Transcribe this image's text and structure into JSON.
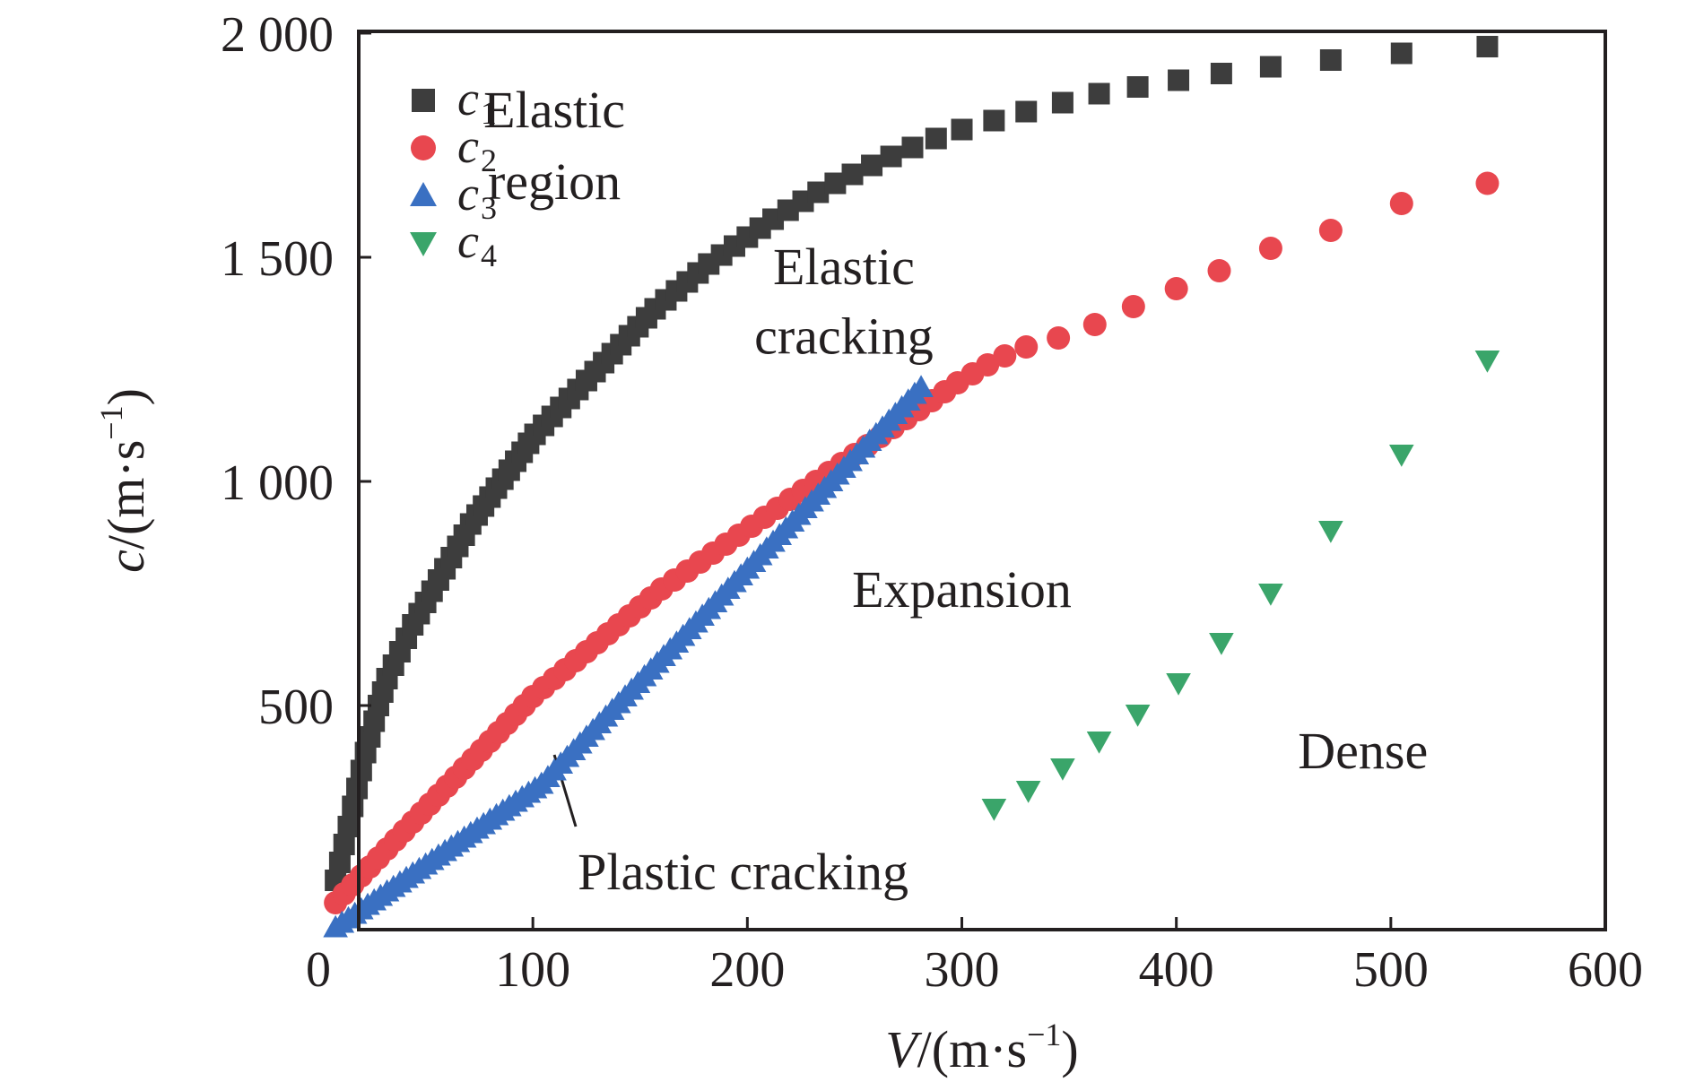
{
  "chart_data": {
    "type": "scatter",
    "xlabel": {
      "var": "V",
      "unit_open": "/(m·s",
      "unit_exp": "−1",
      "unit_close": ")"
    },
    "ylabel": {
      "var": "c",
      "unit_open": "/(m·s",
      "unit_exp": "−1",
      "unit_close": ")"
    },
    "xlim": [
      0,
      600
    ],
    "ylim": [
      0,
      2000
    ],
    "xticks": [
      {
        "value": 0,
        "label": "0"
      },
      {
        "value": 100,
        "label": "100"
      },
      {
        "value": 200,
        "label": "200"
      },
      {
        "value": 300,
        "label": "300"
      },
      {
        "value": 400,
        "label": "400"
      },
      {
        "value": 500,
        "label": "500"
      },
      {
        "value": 600,
        "label": "600"
      }
    ],
    "yticks": [
      {
        "value": 500,
        "label": "500"
      },
      {
        "value": 1000,
        "label": "1 000"
      },
      {
        "value": 1500,
        "label": "1 500"
      },
      {
        "value": 2000,
        "label": "2 000"
      }
    ],
    "grid": false,
    "legend_position": "top-left",
    "series": [
      {
        "name": "c",
        "subscript": "1",
        "marker": "square",
        "color": "#3d3d3d",
        "points": [
          [
            8,
            110
          ],
          [
            10,
            150
          ],
          [
            12,
            190
          ],
          [
            14,
            230
          ],
          [
            16,
            275
          ],
          [
            18,
            315
          ],
          [
            20,
            355
          ],
          [
            22,
            395
          ],
          [
            24,
            430
          ],
          [
            26,
            465
          ],
          [
            28,
            500
          ],
          [
            30,
            530
          ],
          [
            32,
            560
          ],
          [
            35,
            590
          ],
          [
            38,
            620
          ],
          [
            41,
            650
          ],
          [
            44,
            680
          ],
          [
            47,
            705
          ],
          [
            50,
            730
          ],
          [
            53,
            755
          ],
          [
            56,
            780
          ],
          [
            59,
            805
          ],
          [
            62,
            830
          ],
          [
            65,
            855
          ],
          [
            68,
            880
          ],
          [
            71,
            905
          ],
          [
            74,
            925
          ],
          [
            77,
            945
          ],
          [
            80,
            965
          ],
          [
            83,
            985
          ],
          [
            86,
            1005
          ],
          [
            89,
            1025
          ],
          [
            92,
            1045
          ],
          [
            95,
            1065
          ],
          [
            98,
            1085
          ],
          [
            101,
            1105
          ],
          [
            105,
            1125
          ],
          [
            109,
            1145
          ],
          [
            113,
            1165
          ],
          [
            117,
            1185
          ],
          [
            121,
            1205
          ],
          [
            125,
            1225
          ],
          [
            129,
            1245
          ],
          [
            133,
            1265
          ],
          [
            137,
            1285
          ],
          [
            141,
            1305
          ],
          [
            145,
            1325
          ],
          [
            149,
            1345
          ],
          [
            153,
            1365
          ],
          [
            157,
            1385
          ],
          [
            162,
            1405
          ],
          [
            167,
            1425
          ],
          [
            172,
            1445
          ],
          [
            177,
            1465
          ],
          [
            182,
            1485
          ],
          [
            188,
            1505
          ],
          [
            194,
            1525
          ],
          [
            200,
            1545
          ],
          [
            206,
            1565
          ],
          [
            212,
            1585
          ],
          [
            219,
            1605
          ],
          [
            226,
            1625
          ],
          [
            233,
            1645
          ],
          [
            241,
            1665
          ],
          [
            249,
            1685
          ],
          [
            258,
            1705
          ],
          [
            267,
            1725
          ],
          [
            277,
            1745
          ],
          [
            288,
            1765
          ],
          [
            300,
            1785
          ],
          [
            315,
            1805
          ],
          [
            330,
            1825
          ],
          [
            347,
            1845
          ],
          [
            364,
            1865
          ],
          [
            382,
            1880
          ],
          [
            401,
            1895
          ],
          [
            421,
            1910
          ],
          [
            444,
            1925
          ],
          [
            472,
            1940
          ],
          [
            505,
            1955
          ],
          [
            545,
            1970
          ]
        ]
      },
      {
        "name": "c",
        "subscript": "2",
        "marker": "circle",
        "color": "#e8474f",
        "points": [
          [
            8,
            60
          ],
          [
            12,
            80
          ],
          [
            16,
            100
          ],
          [
            20,
            120
          ],
          [
            24,
            140
          ],
          [
            28,
            160
          ],
          [
            32,
            180
          ],
          [
            36,
            200
          ],
          [
            40,
            220
          ],
          [
            44,
            240
          ],
          [
            48,
            260
          ],
          [
            52,
            280
          ],
          [
            56,
            300
          ],
          [
            60,
            320
          ],
          [
            64,
            340
          ],
          [
            68,
            360
          ],
          [
            72,
            380
          ],
          [
            76,
            400
          ],
          [
            80,
            420
          ],
          [
            84,
            440
          ],
          [
            88,
            460
          ],
          [
            92,
            480
          ],
          [
            96,
            500
          ],
          [
            100,
            520
          ],
          [
            105,
            540
          ],
          [
            110,
            560
          ],
          [
            115,
            580
          ],
          [
            120,
            600
          ],
          [
            125,
            620
          ],
          [
            130,
            640
          ],
          [
            135,
            660
          ],
          [
            140,
            680
          ],
          [
            145,
            700
          ],
          [
            150,
            720
          ],
          [
            155,
            740
          ],
          [
            160,
            760
          ],
          [
            166,
            780
          ],
          [
            172,
            800
          ],
          [
            178,
            820
          ],
          [
            184,
            840
          ],
          [
            190,
            860
          ],
          [
            196,
            880
          ],
          [
            202,
            900
          ],
          [
            208,
            920
          ],
          [
            214,
            940
          ],
          [
            220,
            960
          ],
          [
            226,
            980
          ],
          [
            232,
            1000
          ],
          [
            238,
            1020
          ],
          [
            244,
            1040
          ],
          [
            250,
            1060
          ],
          [
            256,
            1080
          ],
          [
            262,
            1100
          ],
          [
            268,
            1120
          ],
          [
            274,
            1140
          ],
          [
            280,
            1160
          ],
          [
            286,
            1180
          ],
          [
            292,
            1200
          ],
          [
            298,
            1220
          ],
          [
            305,
            1240
          ],
          [
            312,
            1260
          ],
          [
            320,
            1280
          ],
          [
            330,
            1300
          ],
          [
            345,
            1320
          ],
          [
            362,
            1350
          ],
          [
            380,
            1390
          ],
          [
            400,
            1430
          ],
          [
            420,
            1470
          ],
          [
            444,
            1520
          ],
          [
            472,
            1560
          ],
          [
            505,
            1620
          ],
          [
            545,
            1665
          ]
        ]
      },
      {
        "name": "c",
        "subscript": "3",
        "marker": "triangle-up",
        "color": "#3a70c2",
        "points": [
          [
            8,
            5
          ],
          [
            11,
            15
          ],
          [
            14,
            25
          ],
          [
            17,
            35
          ],
          [
            20,
            45
          ],
          [
            23,
            55
          ],
          [
            26,
            65
          ],
          [
            29,
            75
          ],
          [
            32,
            85
          ],
          [
            35,
            95
          ],
          [
            38,
            105
          ],
          [
            41,
            115
          ],
          [
            44,
            125
          ],
          [
            47,
            135
          ],
          [
            50,
            145
          ],
          [
            53,
            155
          ],
          [
            56,
            165
          ],
          [
            59,
            175
          ],
          [
            62,
            185
          ],
          [
            65,
            195
          ],
          [
            68,
            205
          ],
          [
            71,
            215
          ],
          [
            74,
            225
          ],
          [
            77,
            235
          ],
          [
            80,
            245
          ],
          [
            83,
            255
          ],
          [
            86,
            265
          ],
          [
            89,
            275
          ],
          [
            92,
            285
          ],
          [
            95,
            295
          ],
          [
            98,
            305
          ],
          [
            101,
            315
          ],
          [
            104,
            325
          ],
          [
            107,
            340
          ],
          [
            110,
            355
          ],
          [
            113,
            370
          ],
          [
            116,
            385
          ],
          [
            119,
            400
          ],
          [
            122,
            415
          ],
          [
            125,
            430
          ],
          [
            128,
            445
          ],
          [
            131,
            460
          ],
          [
            134,
            475
          ],
          [
            137,
            490
          ],
          [
            140,
            505
          ],
          [
            143,
            520
          ],
          [
            146,
            535
          ],
          [
            149,
            550
          ],
          [
            152,
            565
          ],
          [
            155,
            580
          ],
          [
            158,
            595
          ],
          [
            161,
            610
          ],
          [
            164,
            625
          ],
          [
            167,
            640
          ],
          [
            170,
            655
          ],
          [
            173,
            670
          ],
          [
            176,
            685
          ],
          [
            179,
            700
          ],
          [
            182,
            715
          ],
          [
            185,
            730
          ],
          [
            188,
            745
          ],
          [
            191,
            760
          ],
          [
            194,
            775
          ],
          [
            197,
            790
          ],
          [
            200,
            805
          ],
          [
            203,
            820
          ],
          [
            206,
            835
          ],
          [
            209,
            850
          ],
          [
            212,
            865
          ],
          [
            215,
            880
          ],
          [
            218,
            895
          ],
          [
            221,
            910
          ],
          [
            224,
            925
          ],
          [
            227,
            940
          ],
          [
            230,
            955
          ],
          [
            233,
            970
          ],
          [
            236,
            985
          ],
          [
            239,
            1000
          ],
          [
            242,
            1015
          ],
          [
            245,
            1030
          ],
          [
            248,
            1045
          ],
          [
            251,
            1060
          ],
          [
            254,
            1075
          ],
          [
            257,
            1090
          ],
          [
            260,
            1105
          ],
          [
            263,
            1120
          ],
          [
            266,
            1135
          ],
          [
            269,
            1150
          ],
          [
            272,
            1165
          ],
          [
            275,
            1180
          ],
          [
            278,
            1195
          ],
          [
            281,
            1210
          ]
        ]
      },
      {
        "name": "c",
        "subscript": "4",
        "marker": "triangle-down",
        "color": "#3aa56a",
        "points": [
          [
            315,
            270
          ],
          [
            331,
            310
          ],
          [
            347,
            360
          ],
          [
            364,
            420
          ],
          [
            382,
            480
          ],
          [
            401,
            550
          ],
          [
            421,
            640
          ],
          [
            444,
            750
          ],
          [
            472,
            890
          ],
          [
            505,
            1060
          ],
          [
            545,
            1270
          ]
        ]
      }
    ],
    "annotations": [
      {
        "text": "Elastic",
        "x": 110,
        "y": 1790
      },
      {
        "text": "region",
        "x": 110,
        "y": 1630
      },
      {
        "text": "Elastic",
        "x": 245,
        "y": 1440
      },
      {
        "text": "cracking",
        "x": 245,
        "y": 1285
      },
      {
        "text": "Expansion",
        "x": 300,
        "y": 720
      },
      {
        "text": "Dense",
        "x": 487,
        "y": 360
      },
      {
        "text": "Plastic cracking",
        "x": 198,
        "y": 90
      }
    ],
    "leader_line": {
      "x1": 110,
      "y1": 390,
      "x2": 120,
      "y2": 230
    }
  }
}
